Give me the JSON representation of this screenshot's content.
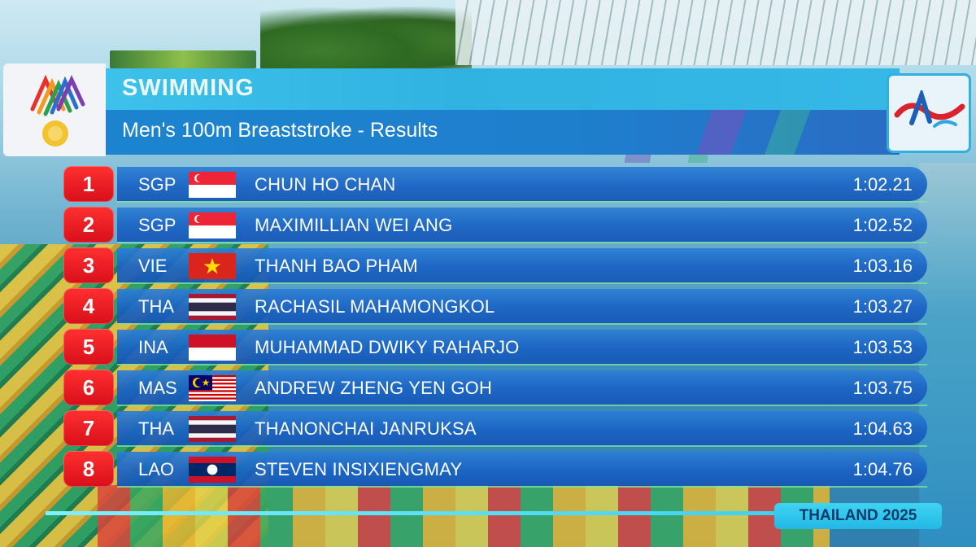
{
  "header": {
    "sport": "SWIMMING",
    "event": "Men's 100m Breaststroke - Results"
  },
  "results": [
    {
      "rank": "1",
      "noc": "SGP",
      "flag": "singapore-flag-icon",
      "name": "CHUN HO CHAN",
      "time": "1:02.21"
    },
    {
      "rank": "2",
      "noc": "SGP",
      "flag": "singapore-flag-icon",
      "name": "MAXIMILLIAN WEI ANG",
      "time": "1:02.52"
    },
    {
      "rank": "3",
      "noc": "VIE",
      "flag": "vietnam-flag-icon",
      "name": "THANH BAO PHAM",
      "time": "1:03.16"
    },
    {
      "rank": "4",
      "noc": "THA",
      "flag": "thailand-flag-icon",
      "name": "RACHASIL MAHAMONGKOL",
      "time": "1:03.27"
    },
    {
      "rank": "5",
      "noc": "INA",
      "flag": "indonesia-flag-icon",
      "name": "MUHAMMAD DWIKY RAHARJO",
      "time": "1:03.53"
    },
    {
      "rank": "6",
      "noc": "MAS",
      "flag": "malaysia-flag-icon",
      "name": "ANDREW ZHENG YEN GOH",
      "time": "1:03.75"
    },
    {
      "rank": "7",
      "noc": "THA",
      "flag": "thailand-flag-icon",
      "name": "THANONCHAI JANRUKSA",
      "time": "1:04.63"
    },
    {
      "rank": "8",
      "noc": "LAO",
      "flag": "laos-flag-icon",
      "name": "STEVEN INSIXIENGMAY",
      "time": "1:04.76"
    }
  ],
  "footer": {
    "label": "THAILAND 2025"
  },
  "colors": {
    "rank_red": "#e8141e",
    "row_blue": "#1a63c4",
    "header_cyan": "#3ec1ea",
    "header_blue": "#1c84cf"
  }
}
